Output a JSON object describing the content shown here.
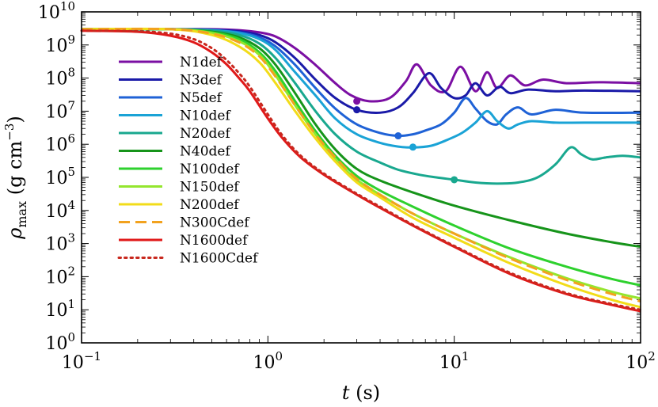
{
  "chart_data": {
    "type": "line",
    "x_scale": "log",
    "y_scale": "log",
    "xlim": [
      0.1,
      100
    ],
    "ylim": [
      1,
      10000000000
    ],
    "xlabel": {
      "symbol": "t",
      "unit": "(s)"
    },
    "ylabel": {
      "symbol": "ρ",
      "sub": "max",
      "unit_pre": "(g cm",
      "unit_exp": "−3",
      "unit_post": ")"
    },
    "x_ticks": [
      {
        "base": "10",
        "exp": "−1"
      },
      {
        "base": "10",
        "exp": "0"
      },
      {
        "base": "10",
        "exp": "1"
      },
      {
        "base": "10",
        "exp": "2"
      }
    ],
    "y_ticks": [
      {
        "base": "10",
        "exp": "0"
      },
      {
        "base": "10",
        "exp": "1"
      },
      {
        "base": "10",
        "exp": "2"
      },
      {
        "base": "10",
        "exp": "3"
      },
      {
        "base": "10",
        "exp": "4"
      },
      {
        "base": "10",
        "exp": "5"
      },
      {
        "base": "10",
        "exp": "6"
      },
      {
        "base": "10",
        "exp": "7"
      },
      {
        "base": "10",
        "exp": "8"
      },
      {
        "base": "10",
        "exp": "9"
      },
      {
        "base": "10",
        "exp": "10"
      }
    ],
    "legend_position": "upper-left",
    "series": [
      {
        "name": "N1def",
        "color": "#7b0fa3",
        "style": "solid",
        "x": [
          0.1,
          0.3,
          0.5,
          0.7,
          0.9,
          1.1,
          1.4,
          1.8,
          2.3,
          2.8,
          3.5,
          4.5,
          5.5,
          6.3,
          7.5,
          9.0,
          10.8,
          13.0,
          15.0,
          17.0,
          20.0,
          24.0,
          30.0,
          40.0,
          60.0,
          100.0
        ],
        "y": [
          3000000000.0,
          3000000000.0,
          3000000000.0,
          2800000000.0,
          2400000000.0,
          1800000000.0,
          800000000.0,
          250000000.0,
          70000000.0,
          30000000.0,
          20000000.0,
          25000000.0,
          80000000.0,
          260000000.0,
          60000000.0,
          40000000.0,
          220000000.0,
          40000000.0,
          150000000.0,
          50000000.0,
          120000000.0,
          60000000.0,
          90000000.0,
          70000000.0,
          75000000.0,
          70000000.0
        ],
        "markers": [
          {
            "x": 3.0,
            "y": 20000000.0
          }
        ]
      },
      {
        "name": "N3def",
        "color": "#1a1aa8",
        "style": "solid",
        "x": [
          0.1,
          0.3,
          0.5,
          0.7,
          0.9,
          1.1,
          1.4,
          1.8,
          2.3,
          3.0,
          4.0,
          5.0,
          6.0,
          7.3,
          8.5,
          10.0,
          11.5,
          13.0,
          15.0,
          17.5,
          20.0,
          25.0,
          35.0,
          50.0,
          100.0
        ],
        "y": [
          3000000000.0,
          3000000000.0,
          2900000000.0,
          2600000000.0,
          2000000000.0,
          1200000000.0,
          400000000.0,
          90000000.0,
          25000000.0,
          11000000.0,
          9000000.0,
          13000000.0,
          35000000.0,
          140000000.0,
          50000000.0,
          25000000.0,
          30000000.0,
          70000000.0,
          30000000.0,
          55000000.0,
          35000000.0,
          45000000.0,
          40000000.0,
          42000000.0,
          40000000.0
        ],
        "markers": [
          {
            "x": 3.0,
            "y": 11000000.0
          }
        ]
      },
      {
        "name": "N5def",
        "color": "#1f62d6",
        "style": "solid",
        "x": [
          0.1,
          0.3,
          0.5,
          0.7,
          0.9,
          1.1,
          1.4,
          1.8,
          2.3,
          3.0,
          4.0,
          5.0,
          6.0,
          7.0,
          8.5,
          10.0,
          11.5,
          13.0,
          15.0,
          17.0,
          19.0,
          22.0,
          26.0,
          35.0,
          50.0,
          100.0
        ],
        "y": [
          3000000000.0,
          3000000000.0,
          2800000000.0,
          2400000000.0,
          1700000000.0,
          900000000.0,
          250000000.0,
          50000000.0,
          12000000.0,
          4000000.0,
          2200000.0,
          1800000.0,
          2000000.0,
          2600000.0,
          4000000.0,
          9000000.0,
          25000000.0,
          12000000.0,
          5000000.0,
          4000000.0,
          8000000.0,
          13000000.0,
          8000000.0,
          11000000.0,
          9000000.0,
          9000000.0
        ],
        "markers": [
          {
            "x": 5.0,
            "y": 1800000.0
          }
        ]
      },
      {
        "name": "N10def",
        "color": "#1aa3d6",
        "style": "solid",
        "x": [
          0.1,
          0.3,
          0.5,
          0.7,
          0.9,
          1.1,
          1.4,
          1.8,
          2.3,
          3.0,
          4.0,
          5.0,
          6.0,
          7.5,
          9.0,
          11.0,
          13.0,
          15.0,
          17.0,
          19.5,
          22.0,
          26.0,
          35.0,
          50.0,
          100.0
        ],
        "y": [
          3000000000.0,
          3000000000.0,
          2800000000.0,
          2300000000.0,
          1500000000.0,
          700000000.0,
          150000000.0,
          30000000.0,
          6000000.0,
          2000000.0,
          1100000.0,
          850000.0,
          800000.0,
          900000.0,
          1300000.0,
          2200000.0,
          4500000.0,
          10000000.0,
          5000000.0,
          3000000.0,
          4000000.0,
          5000000.0,
          4500000.0,
          4500000.0,
          4500000.0
        ],
        "markers": [
          {
            "x": 6.0,
            "y": 820000.0
          }
        ]
      },
      {
        "name": "N20def",
        "color": "#19a88f",
        "style": "solid",
        "x": [
          0.1,
          0.3,
          0.5,
          0.7,
          0.9,
          1.1,
          1.4,
          1.8,
          2.3,
          3.0,
          4.0,
          5.0,
          6.5,
          8.0,
          10.0,
          13.0,
          17.0,
          22.0,
          28.0,
          35.0,
          42.0,
          48.0,
          55.0,
          65.0,
          80.0,
          100.0
        ],
        "y": [
          3000000000.0,
          3000000000.0,
          2700000000.0,
          2000000000.0,
          1100000000.0,
          400000000.0,
          70000000.0,
          10000000.0,
          2000000.0,
          600000.0,
          280000.0,
          170000.0,
          120000.0,
          100000.0,
          85000.0,
          70000.0,
          65000.0,
          70000.0,
          100000.0,
          250000.0,
          800000.0,
          500000.0,
          350000.0,
          400000.0,
          450000.0,
          400000.0
        ],
        "markers": [
          {
            "x": 10.0,
            "y": 85000.0
          }
        ]
      },
      {
        "name": "N40def",
        "color": "#16941a",
        "style": "solid",
        "x": [
          0.1,
          0.3,
          0.5,
          0.7,
          0.9,
          1.1,
          1.4,
          1.8,
          2.3,
          3.0,
          4.0,
          6.0,
          10.0,
          20.0,
          40.0,
          70.0,
          100.0
        ],
        "y": [
          3000000000.0,
          3000000000.0,
          2500000000.0,
          1700000000.0,
          800000000.0,
          250000000.0,
          35000000.0,
          4000000.0,
          700000.0,
          180000.0,
          80000.0,
          35000.0,
          14000.0,
          5000.0,
          2000.0,
          1100.0,
          800.0
        ],
        "markers": []
      },
      {
        "name": "N100def",
        "color": "#2ed12e",
        "style": "solid",
        "x": [
          0.1,
          0.3,
          0.5,
          0.7,
          0.9,
          1.1,
          1.4,
          1.8,
          2.3,
          3.0,
          4.0,
          6.0,
          10.0,
          20.0,
          40.0,
          70.0,
          100.0
        ],
        "y": [
          3000000000.0,
          3000000000.0,
          2400000000.0,
          1500000000.0,
          600000000.0,
          160000000.0,
          20000000.0,
          2500000.0,
          450000.0,
          110000.0,
          40000.0,
          13000.0,
          3500.0,
          700.0,
          200.0,
          85.0,
          55.0
        ],
        "markers": []
      },
      {
        "name": "N150def",
        "color": "#94e62e",
        "style": "solid",
        "x": [
          0.1,
          0.3,
          0.5,
          0.7,
          0.9,
          1.1,
          1.4,
          1.8,
          2.3,
          3.0,
          4.0,
          6.0,
          10.0,
          20.0,
          40.0,
          70.0,
          100.0
        ],
        "y": [
          3000000000.0,
          3000000000.0,
          2300000000.0,
          1300000000.0,
          500000000.0,
          120000000.0,
          15000000.0,
          2000000.0,
          350000.0,
          85000.0,
          30000.0,
          8000.0,
          2000.0,
          380.0,
          90.0,
          35.0,
          22.0
        ],
        "markers": []
      },
      {
        "name": "N200def",
        "color": "#f2dc19",
        "style": "solid",
        "x": [
          0.1,
          0.3,
          0.5,
          0.7,
          0.9,
          1.1,
          1.4,
          1.8,
          2.3,
          3.0,
          4.0,
          6.0,
          10.0,
          20.0,
          40.0,
          70.0,
          100.0
        ],
        "y": [
          3000000000.0,
          3000000000.0,
          2000000000.0,
          900000000.0,
          300000000.0,
          70000000.0,
          10000000.0,
          1500000.0,
          300000.0,
          70000.0,
          25000.0,
          6000.0,
          1500.0,
          250.0,
          55.0,
          20.0,
          12.0
        ],
        "markers": []
      },
      {
        "name": "N300Cdef",
        "color": "#f2a21e",
        "style": "dashed",
        "x": [
          0.1,
          0.3,
          0.5,
          0.7,
          0.9,
          1.1,
          1.4,
          1.8,
          2.3,
          3.0,
          4.0,
          6.0,
          10.0,
          20.0,
          40.0,
          70.0,
          100.0
        ],
        "y": [
          3000000000.0,
          3000000000.0,
          2200000000.0,
          1200000000.0,
          450000000.0,
          110000000.0,
          15000000.0,
          2000000.0,
          400000.0,
          90000.0,
          30000.0,
          8000.0,
          2000.0,
          350.0,
          80.0,
          30.0,
          18.0
        ],
        "markers": []
      },
      {
        "name": "N1600def",
        "color": "#e01919",
        "style": "solid",
        "x": [
          0.1,
          0.2,
          0.3,
          0.4,
          0.5,
          0.6,
          0.7,
          0.8,
          1.0,
          1.2,
          1.5,
          2.0,
          3.0,
          4.0,
          6.0,
          10.0,
          20.0,
          40.0,
          70.0,
          100.0
        ],
        "y": [
          2700000000.0,
          2500000000.0,
          1900000000.0,
          1200000000.0,
          600000000.0,
          260000000.0,
          100000000.0,
          40000000.0,
          6000000.0,
          1500000.0,
          400000.0,
          120000.0,
          30000.0,
          12000.0,
          3500.0,
          800.0,
          120.0,
          30.0,
          14.0,
          9
        ],
        "markers": []
      },
      {
        "name": "N1600Cdef",
        "color": "#c8281e",
        "style": "dotted",
        "x": [
          0.1,
          0.2,
          0.3,
          0.4,
          0.5,
          0.6,
          0.7,
          0.8,
          1.0,
          1.2,
          1.5,
          2.0,
          3.0,
          4.0,
          6.0,
          10.0,
          20.0,
          40.0,
          70.0,
          100.0
        ],
        "y": [
          2700000000.0,
          2600000000.0,
          2200000000.0,
          1500000000.0,
          800000000.0,
          350000000.0,
          140000000.0,
          55000000.0,
          8000000.0,
          1800000.0,
          450000.0,
          130000.0,
          32000.0,
          13000.0,
          3700.0,
          850.0,
          130.0,
          32.0,
          15.0,
          10.0
        ],
        "markers": []
      }
    ]
  }
}
